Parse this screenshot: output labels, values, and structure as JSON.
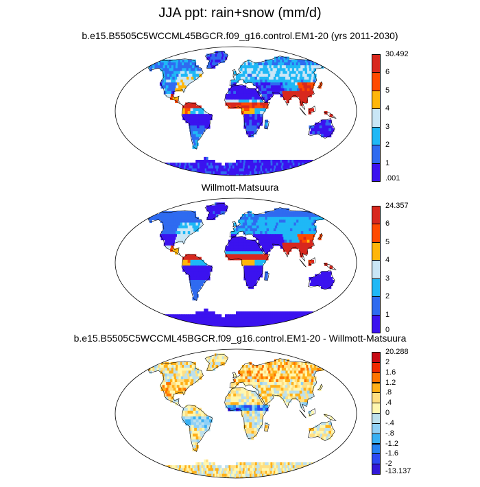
{
  "title": "JJA ppt: rain+snow (mm/d)",
  "palettes": {
    "precip": [
      "#3b12ef",
      "#2f6bf0",
      "#1fb8f6",
      "#c9e6f6",
      "#ffb60a",
      "#ff4a00",
      "#d8281e"
    ],
    "diff": [
      "#3118d8",
      "#2b49f3",
      "#2583f2",
      "#38b0f4",
      "#8fd0f6",
      "#bde0ec",
      "#fff7b0",
      "#ffdf82",
      "#ffb018",
      "#ff7400",
      "#f02a00",
      "#c80a14"
    ]
  },
  "panels": [
    {
      "title": "b.e15.B5505C5WCCML45BGCR.f09_g16.control.EM1-20 (yrs 2011-2030)",
      "palette": "precip",
      "field": "model",
      "colorbar_labels": [
        "30.492",
        "6",
        "5",
        "4",
        "3",
        "2",
        "1",
        ".001"
      ]
    },
    {
      "title": "Willmott-Matsuura",
      "palette": "precip",
      "field": "obs",
      "colorbar_labels": [
        "24.357",
        "6",
        "5",
        "4",
        "3",
        "2",
        "1",
        "0"
      ]
    },
    {
      "title": "b.e15.B5505C5WCCML45BGCR.f09_g16.control.EM1-20 - Willmott-Matsuura",
      "palette": "diff",
      "field": "diff",
      "colorbar_labels": [
        "20.288",
        "2",
        "1.6",
        "1.2",
        ".8",
        ".4",
        "0",
        "-.4",
        "-.8",
        "-1.2",
        "-1.6",
        "-2",
        "-13.137"
      ]
    }
  ]
}
